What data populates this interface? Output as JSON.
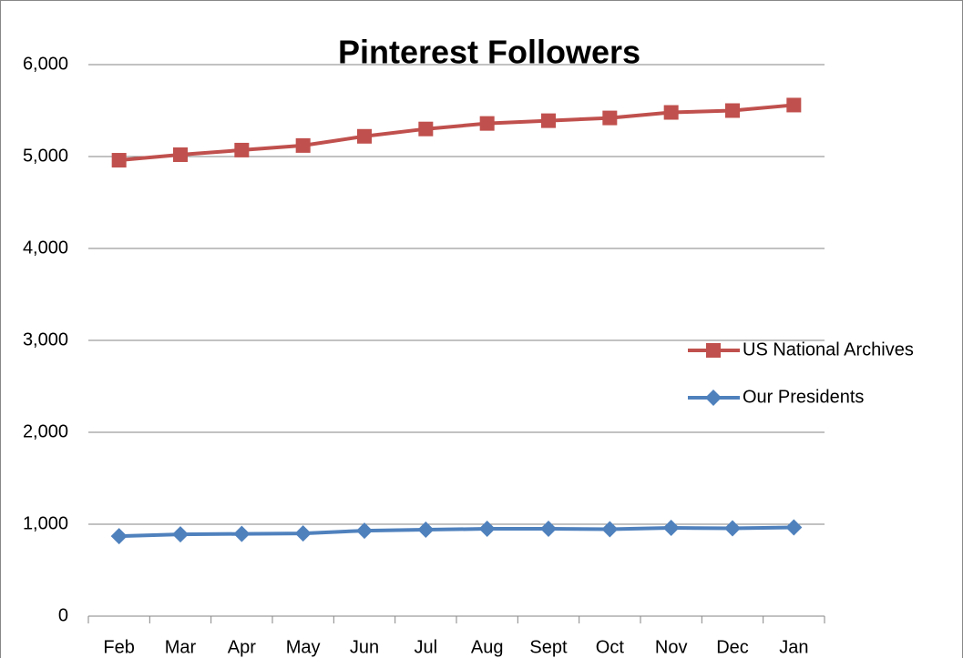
{
  "chart_data": {
    "type": "line",
    "title": "Pinterest Followers",
    "categories": [
      "Feb",
      "Mar",
      "Apr",
      "May",
      "Jun",
      "Jul",
      "Aug",
      "Sept",
      "Oct",
      "Nov",
      "Dec",
      "Jan"
    ],
    "series": [
      {
        "name": "US National Archives",
        "color": "#c0504d",
        "marker": "square",
        "values": [
          4960,
          5020,
          5070,
          5120,
          5220,
          5300,
          5360,
          5390,
          5420,
          5480,
          5500,
          5560
        ]
      },
      {
        "name": "Our Presidents",
        "color": "#4f81bd",
        "marker": "diamond",
        "values": [
          870,
          890,
          895,
          900,
          930,
          940,
          950,
          950,
          945,
          960,
          955,
          965
        ]
      }
    ],
    "ylim": [
      0,
      6000
    ],
    "yticks": [
      0,
      {
        "value": 1000,
        "label": "1,000"
      },
      {
        "value": 2000,
        "label": "2,000"
      },
      {
        "value": 3000,
        "label": "3,000"
      },
      {
        "value": 4000,
        "label": "4,000"
      },
      {
        "value": 5000,
        "label": "5,000"
      },
      {
        "value": 6000,
        "label": "6,000"
      }
    ],
    "grid": true,
    "legend": "right"
  }
}
